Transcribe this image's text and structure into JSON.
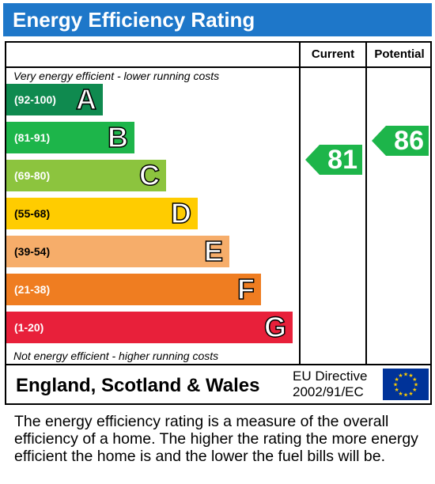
{
  "title": "Energy Efficiency Rating",
  "columns": {
    "current": "Current",
    "potential": "Potential"
  },
  "notes": {
    "top": "Very energy efficient - lower running costs",
    "bottom": "Not energy efficient - higher running costs"
  },
  "chart_data": {
    "type": "bar",
    "title": "Energy Efficiency Rating",
    "categories": [
      "A",
      "B",
      "C",
      "D",
      "E",
      "F",
      "G"
    ],
    "ranges": [
      "(92-100)",
      "(81-91)",
      "(69-80)",
      "(55-68)",
      "(39-54)",
      "(21-38)",
      "(1-20)"
    ],
    "colors": [
      "#0f8a4f",
      "#1db54a",
      "#8cc43e",
      "#ffcc00",
      "#f6ad6a",
      "#ef7d21",
      "#e8203a"
    ],
    "current": {
      "label": "Current",
      "value": 81,
      "band": "B",
      "color": "#1db54a"
    },
    "potential": {
      "label": "Potential",
      "value": 86,
      "band": "B",
      "color": "#1db54a"
    }
  },
  "footer": {
    "country": "England, Scotland & Wales",
    "directive_line1": "EU Directive",
    "directive_line2": "2002/91/EC",
    "flag_icon": "eu-flag-icon"
  },
  "explanation": "The energy efficiency rating is a measure of the overall efficiency of a home. The higher the rating the more energy efficient the home is and the lower the fuel bills will be."
}
